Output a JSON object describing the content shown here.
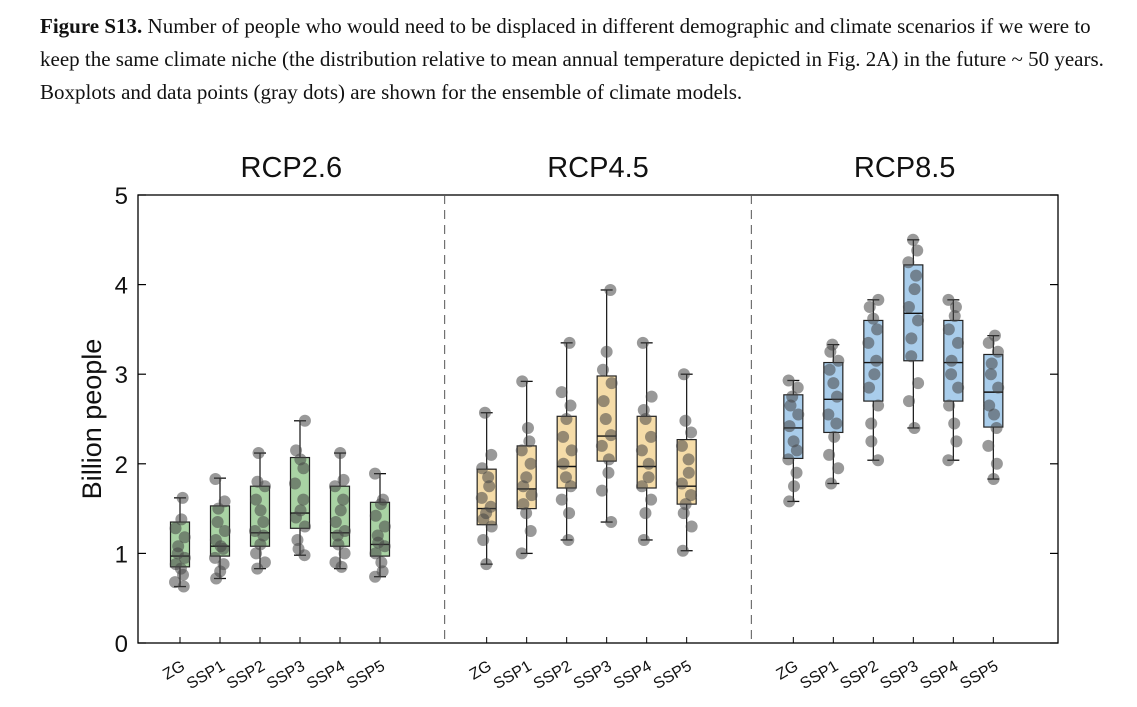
{
  "caption": {
    "label": "Figure S13.",
    "text": "Number of people who would need to be displaced in different demographic and climate scenarios if we were to keep the same climate niche (the distribution relative to mean annual temperature depicted in Fig. 2A) in the future ~ 50 years. Boxplots and data points (gray dots) are shown for the ensemble of climate models."
  },
  "chart_data": {
    "type": "boxplot",
    "ylabel": "Billion people",
    "ylim": [
      0,
      5
    ],
    "yticks": [
      0,
      1,
      2,
      3,
      4,
      5
    ],
    "categories": [
      "ZG",
      "SSP1",
      "SSP2",
      "SSP3",
      "SSP4",
      "SSP5"
    ],
    "grid": false,
    "panels": [
      {
        "title": "RCP2.6",
        "color": "#a9d3a4",
        "boxes": [
          {
            "category": "ZG",
            "whisker_low": 0.63,
            "q1": 0.85,
            "median": 0.97,
            "q3": 1.35,
            "whisker_high": 1.62,
            "points": [
              0.63,
              0.68,
              0.76,
              0.83,
              0.88,
              0.95,
              1.0,
              1.08,
              1.18,
              1.28,
              1.38,
              1.62
            ]
          },
          {
            "category": "SSP1",
            "whisker_low": 0.72,
            "q1": 0.97,
            "median": 1.08,
            "q3": 1.53,
            "whisker_high": 1.84,
            "points": [
              0.72,
              0.8,
              0.88,
              0.95,
              1.05,
              1.08,
              1.15,
              1.25,
              1.35,
              1.5,
              1.58,
              1.83
            ]
          },
          {
            "category": "SSP2",
            "whisker_low": 0.83,
            "q1": 1.08,
            "median": 1.23,
            "q3": 1.75,
            "whisker_high": 2.12,
            "points": [
              0.83,
              0.9,
              1.0,
              1.1,
              1.2,
              1.25,
              1.35,
              1.48,
              1.6,
              1.75,
              1.8,
              2.12
            ]
          },
          {
            "category": "SSP3",
            "whisker_low": 0.98,
            "q1": 1.28,
            "median": 1.45,
            "q3": 2.07,
            "whisker_high": 2.48,
            "points": [
              0.98,
              1.05,
              1.15,
              1.3,
              1.4,
              1.48,
              1.6,
              1.78,
              1.95,
              2.05,
              2.15,
              2.48
            ]
          },
          {
            "category": "SSP4",
            "whisker_low": 0.83,
            "q1": 1.08,
            "median": 1.23,
            "q3": 1.75,
            "whisker_high": 2.12,
            "points": [
              0.85,
              0.9,
              1.0,
              1.1,
              1.2,
              1.25,
              1.35,
              1.48,
              1.6,
              1.75,
              1.82,
              2.12
            ]
          },
          {
            "category": "SSP5",
            "whisker_low": 0.74,
            "q1": 0.97,
            "median": 1.1,
            "q3": 1.57,
            "whisker_high": 1.89,
            "points": [
              0.74,
              0.8,
              0.9,
              1.0,
              1.08,
              1.12,
              1.2,
              1.3,
              1.42,
              1.55,
              1.6,
              1.89
            ]
          }
        ]
      },
      {
        "title": "RCP4.5",
        "color": "#f5dca8",
        "boxes": [
          {
            "category": "ZG",
            "whisker_low": 0.88,
            "q1": 1.32,
            "median": 1.5,
            "q3": 1.94,
            "whisker_high": 2.57,
            "points": [
              0.88,
              1.15,
              1.3,
              1.38,
              1.45,
              1.52,
              1.62,
              1.75,
              1.85,
              1.95,
              2.1,
              2.57
            ]
          },
          {
            "category": "SSP1",
            "whisker_low": 1.0,
            "q1": 1.5,
            "median": 1.72,
            "q3": 2.2,
            "whisker_high": 2.92,
            "points": [
              1.0,
              1.25,
              1.45,
              1.55,
              1.65,
              1.75,
              1.85,
              2.0,
              2.15,
              2.25,
              2.4,
              2.92
            ]
          },
          {
            "category": "SSP2",
            "whisker_low": 1.15,
            "q1": 1.73,
            "median": 1.97,
            "q3": 2.53,
            "whisker_high": 3.35,
            "points": [
              1.15,
              1.45,
              1.6,
              1.75,
              1.85,
              2.0,
              2.15,
              2.3,
              2.5,
              2.65,
              2.8,
              3.35
            ]
          },
          {
            "category": "SSP3",
            "whisker_low": 1.35,
            "q1": 2.03,
            "median": 2.31,
            "q3": 2.98,
            "whisker_high": 3.94,
            "points": [
              1.35,
              1.7,
              1.9,
              2.05,
              2.2,
              2.32,
              2.5,
              2.7,
              2.9,
              3.05,
              3.25,
              3.94
            ]
          },
          {
            "category": "SSP4",
            "whisker_low": 1.15,
            "q1": 1.73,
            "median": 1.97,
            "q3": 2.53,
            "whisker_high": 3.35,
            "points": [
              1.15,
              1.45,
              1.6,
              1.75,
              1.85,
              2.0,
              2.15,
              2.3,
              2.5,
              2.6,
              2.75,
              3.35
            ]
          },
          {
            "category": "SSP5",
            "whisker_low": 1.03,
            "q1": 1.55,
            "median": 1.75,
            "q3": 2.27,
            "whisker_high": 3.0,
            "points": [
              1.03,
              1.3,
              1.45,
              1.55,
              1.65,
              1.78,
              1.9,
              2.05,
              2.2,
              2.35,
              2.48,
              3.0
            ]
          }
        ]
      },
      {
        "title": "RCP8.5",
        "color": "#a9cdeb",
        "boxes": [
          {
            "category": "ZG",
            "whisker_low": 1.58,
            "q1": 2.06,
            "median": 2.4,
            "q3": 2.77,
            "whisker_high": 2.93,
            "points": [
              1.58,
              1.75,
              1.9,
              2.05,
              2.15,
              2.25,
              2.42,
              2.55,
              2.65,
              2.75,
              2.85,
              2.93
            ]
          },
          {
            "category": "SSP1",
            "whisker_low": 1.78,
            "q1": 2.35,
            "median": 2.72,
            "q3": 3.13,
            "whisker_high": 3.33,
            "points": [
              1.78,
              1.95,
              2.1,
              2.3,
              2.45,
              2.55,
              2.75,
              2.9,
              3.05,
              3.15,
              3.25,
              3.33
            ]
          },
          {
            "category": "SSP2",
            "whisker_low": 2.04,
            "q1": 2.7,
            "median": 3.13,
            "q3": 3.6,
            "whisker_high": 3.83,
            "points": [
              2.04,
              2.25,
              2.45,
              2.65,
              2.85,
              3.0,
              3.15,
              3.35,
              3.5,
              3.62,
              3.75,
              3.83
            ]
          },
          {
            "category": "SSP3",
            "whisker_low": 2.4,
            "q1": 3.15,
            "median": 3.68,
            "q3": 4.22,
            "whisker_high": 4.5,
            "points": [
              2.4,
              2.7,
              2.9,
              3.2,
              3.4,
              3.6,
              3.75,
              3.95,
              4.1,
              4.25,
              4.38,
              4.5
            ]
          },
          {
            "category": "SSP4",
            "whisker_low": 2.04,
            "q1": 2.7,
            "median": 3.13,
            "q3": 3.6,
            "whisker_high": 3.83,
            "points": [
              2.04,
              2.25,
              2.45,
              2.65,
              2.85,
              3.0,
              3.15,
              3.35,
              3.5,
              3.65,
              3.75,
              3.83
            ]
          },
          {
            "category": "SSP5",
            "whisker_low": 1.83,
            "q1": 2.41,
            "median": 2.8,
            "q3": 3.22,
            "whisker_high": 3.43,
            "points": [
              1.83,
              2.0,
              2.2,
              2.4,
              2.55,
              2.65,
              2.85,
              3.0,
              3.12,
              3.25,
              3.35,
              3.43
            ]
          }
        ]
      }
    ]
  }
}
